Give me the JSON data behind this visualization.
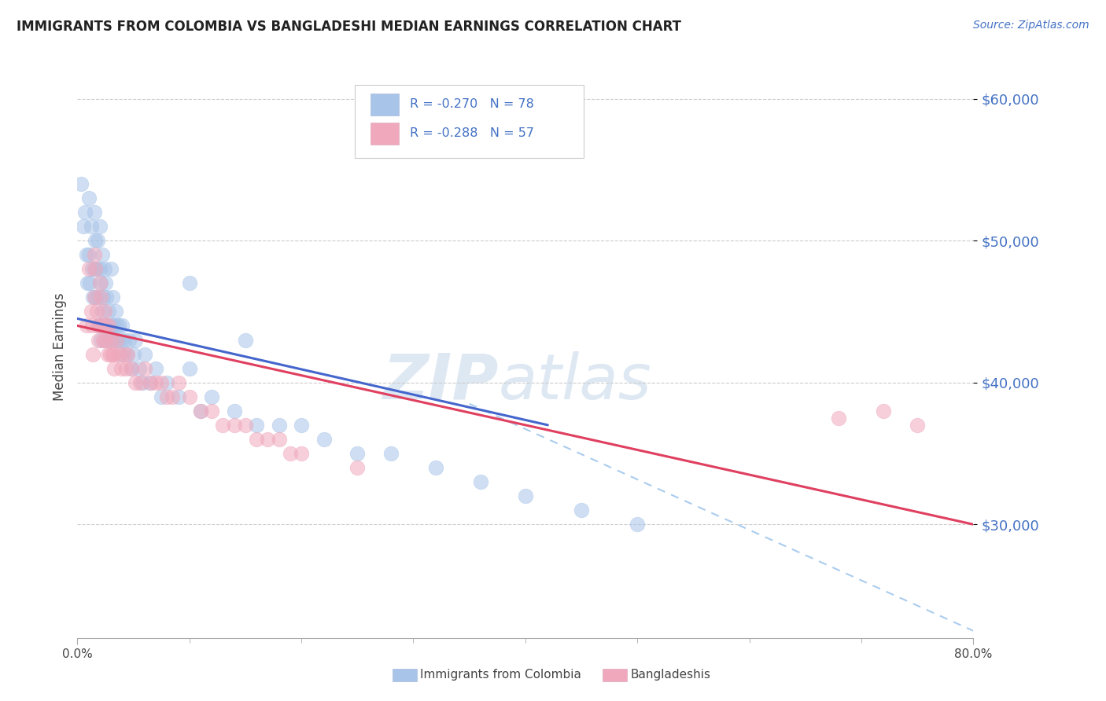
{
  "title": "IMMIGRANTS FROM COLOMBIA VS BANGLADESHI MEDIAN EARNINGS CORRELATION CHART",
  "source": "Source: ZipAtlas.com",
  "ylabel": "Median Earnings",
  "yticks": [
    30000,
    40000,
    50000,
    60000
  ],
  "ytick_labels": [
    "$30,000",
    "$40,000",
    "$50,000",
    "$60,000"
  ],
  "xlim": [
    0.0,
    0.8
  ],
  "ylim": [
    22000,
    63000
  ],
  "color_colombia": "#a8c4e8",
  "color_bangladesh": "#f0a8bc",
  "color_line_colombia": "#4466cc",
  "color_line_bangladesh": "#e04060",
  "color_dashed": "#aaccee",
  "color_axis_labels": "#4472c4",
  "color_title": "#222222",
  "watermark_zip": "#c8d8ee",
  "watermark_atlas": "#c8d8ee",
  "legend_box_color": "#4472c4",
  "bottom_legend_color": "#555555",
  "colombia_x": [
    0.003,
    0.005,
    0.007,
    0.008,
    0.009,
    0.01,
    0.01,
    0.011,
    0.012,
    0.013,
    0.014,
    0.015,
    0.015,
    0.016,
    0.016,
    0.017,
    0.018,
    0.018,
    0.019,
    0.02,
    0.02,
    0.02,
    0.021,
    0.021,
    0.022,
    0.022,
    0.023,
    0.024,
    0.024,
    0.025,
    0.025,
    0.026,
    0.027,
    0.028,
    0.029,
    0.03,
    0.03,
    0.031,
    0.032,
    0.033,
    0.034,
    0.035,
    0.036,
    0.037,
    0.038,
    0.039,
    0.04,
    0.042,
    0.044,
    0.046,
    0.048,
    0.05,
    0.052,
    0.055,
    0.058,
    0.06,
    0.065,
    0.07,
    0.075,
    0.08,
    0.09,
    0.1,
    0.11,
    0.12,
    0.14,
    0.16,
    0.18,
    0.2,
    0.22,
    0.25,
    0.28,
    0.32,
    0.36,
    0.4,
    0.45,
    0.5,
    0.1,
    0.15
  ],
  "colombia_y": [
    54000,
    51000,
    52000,
    49000,
    47000,
    53000,
    49000,
    47000,
    51000,
    48000,
    46000,
    52000,
    48000,
    50000,
    46000,
    48000,
    50000,
    46000,
    44000,
    51000,
    48000,
    44000,
    47000,
    43000,
    49000,
    45000,
    46000,
    48000,
    44000,
    47000,
    43000,
    46000,
    44000,
    45000,
    43000,
    48000,
    44000,
    46000,
    44000,
    43000,
    45000,
    44000,
    43000,
    44000,
    42000,
    43000,
    44000,
    43000,
    42000,
    43000,
    41000,
    42000,
    43000,
    41000,
    40000,
    42000,
    40000,
    41000,
    39000,
    40000,
    39000,
    41000,
    38000,
    39000,
    38000,
    37000,
    37000,
    37000,
    36000,
    35000,
    35000,
    34000,
    33000,
    32000,
    31000,
    30000,
    47000,
    43000
  ],
  "bangladesh_x": [
    0.008,
    0.01,
    0.012,
    0.013,
    0.014,
    0.015,
    0.015,
    0.016,
    0.017,
    0.018,
    0.019,
    0.02,
    0.02,
    0.021,
    0.022,
    0.023,
    0.024,
    0.025,
    0.026,
    0.027,
    0.028,
    0.029,
    0.03,
    0.031,
    0.032,
    0.033,
    0.035,
    0.037,
    0.039,
    0.041,
    0.043,
    0.045,
    0.048,
    0.052,
    0.056,
    0.06,
    0.065,
    0.07,
    0.075,
    0.08,
    0.085,
    0.09,
    0.1,
    0.11,
    0.12,
    0.13,
    0.14,
    0.15,
    0.16,
    0.17,
    0.18,
    0.19,
    0.2,
    0.25,
    0.68,
    0.72,
    0.75
  ],
  "bangladesh_y": [
    44000,
    48000,
    45000,
    44000,
    42000,
    49000,
    46000,
    48000,
    45000,
    44000,
    43000,
    47000,
    44000,
    46000,
    44000,
    43000,
    45000,
    43000,
    44000,
    42000,
    44000,
    42000,
    43000,
    42000,
    42000,
    41000,
    43000,
    42000,
    41000,
    42000,
    41000,
    42000,
    41000,
    40000,
    40000,
    41000,
    40000,
    40000,
    40000,
    39000,
    39000,
    40000,
    39000,
    38000,
    38000,
    37000,
    37000,
    37000,
    36000,
    36000,
    36000,
    35000,
    35000,
    34000,
    37500,
    38000,
    37000
  ],
  "colombia_trend_x": [
    0.0,
    0.42
  ],
  "colombia_trend_y": [
    44500,
    37000
  ],
  "bangladesh_trend_x": [
    0.0,
    0.8
  ],
  "bangladesh_trend_y": [
    44000,
    30000
  ],
  "dashed_trend_x": [
    0.35,
    0.8
  ],
  "dashed_trend_y": [
    38500,
    22500
  ],
  "background_color": "#ffffff",
  "grid_color": "#cccccc",
  "xtick_positions": [
    0.1,
    0.2,
    0.3,
    0.4,
    0.5,
    0.6,
    0.7
  ],
  "bottom_label_colombia": "Immigrants from Colombia",
  "bottom_label_bangladesh": "Bangladeshis"
}
